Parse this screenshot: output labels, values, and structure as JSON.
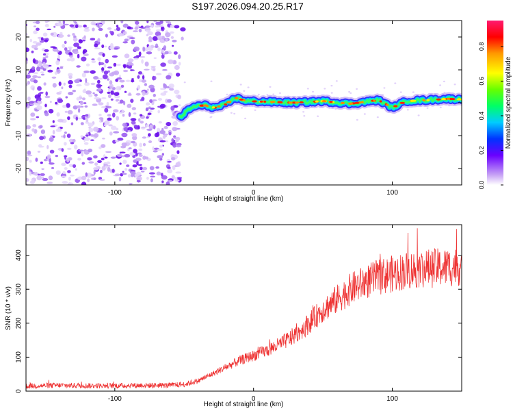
{
  "title": "S197.2026.094.20.25.R17",
  "chart_data": [
    {
      "type": "heatmap",
      "title": "S197.2026.094.20.25.R17",
      "xlabel": "Height of straight line (km)",
      "ylabel": "Frequency (Hz)",
      "xlim": [
        -164,
        150
      ],
      "ylim": [
        -25,
        25
      ],
      "xticks": [
        -100,
        0,
        100
      ],
      "yticks": [
        -20,
        -10,
        0,
        10,
        20
      ],
      "colorbar": {
        "label": "Normalized spectral amplitude",
        "range": [
          0,
          0.95
        ],
        "ticks": [
          0,
          0.2,
          0.4,
          0.6,
          0.8
        ],
        "tick_labels": [
          "0.0",
          "0.2",
          "0.4",
          "0.6",
          "0.8"
        ]
      },
      "noise_region_x": [
        -164,
        -53
      ],
      "signal_track": [
        {
          "x": -53,
          "freq": -4.5
        },
        {
          "x": -48,
          "freq": -2.5
        },
        {
          "x": -42,
          "freq": -1.0
        },
        {
          "x": -35,
          "freq": -0.8
        },
        {
          "x": -28,
          "freq": -1.5
        },
        {
          "x": -20,
          "freq": -0.5
        },
        {
          "x": -13,
          "freq": 1.5
        },
        {
          "x": -5,
          "freq": 0.5
        },
        {
          "x": 10,
          "freq": 0.3
        },
        {
          "x": 30,
          "freq": 0.0
        },
        {
          "x": 50,
          "freq": 0.5
        },
        {
          "x": 70,
          "freq": -0.3
        },
        {
          "x": 90,
          "freq": 0.8
        },
        {
          "x": 100,
          "freq": -1.5
        },
        {
          "x": 110,
          "freq": 0.5
        },
        {
          "x": 125,
          "freq": 0.8
        },
        {
          "x": 140,
          "freq": 1.2
        },
        {
          "x": 150,
          "freq": 1.0
        }
      ]
    },
    {
      "type": "line",
      "xlabel": "Height of straight line (km)",
      "ylabel": "SNR (10 * v/v)",
      "xlim": [
        -164,
        150
      ],
      "ylim": [
        0,
        490
      ],
      "xticks": [
        -100,
        0,
        100
      ],
      "yticks": [
        0,
        100,
        200,
        300,
        400
      ],
      "color": "#ee3333",
      "x": [
        -164,
        -140,
        -120,
        -100,
        -80,
        -60,
        -50,
        -40,
        -30,
        -20,
        -10,
        0,
        10,
        20,
        30,
        40,
        50,
        60,
        70,
        80,
        90,
        100,
        110,
        120,
        130,
        140,
        150
      ],
      "y": [
        15,
        17,
        16,
        16,
        17,
        17,
        20,
        30,
        50,
        70,
        90,
        105,
        120,
        140,
        165,
        200,
        240,
        270,
        300,
        320,
        335,
        345,
        355,
        360,
        362,
        365,
        368
      ]
    }
  ]
}
